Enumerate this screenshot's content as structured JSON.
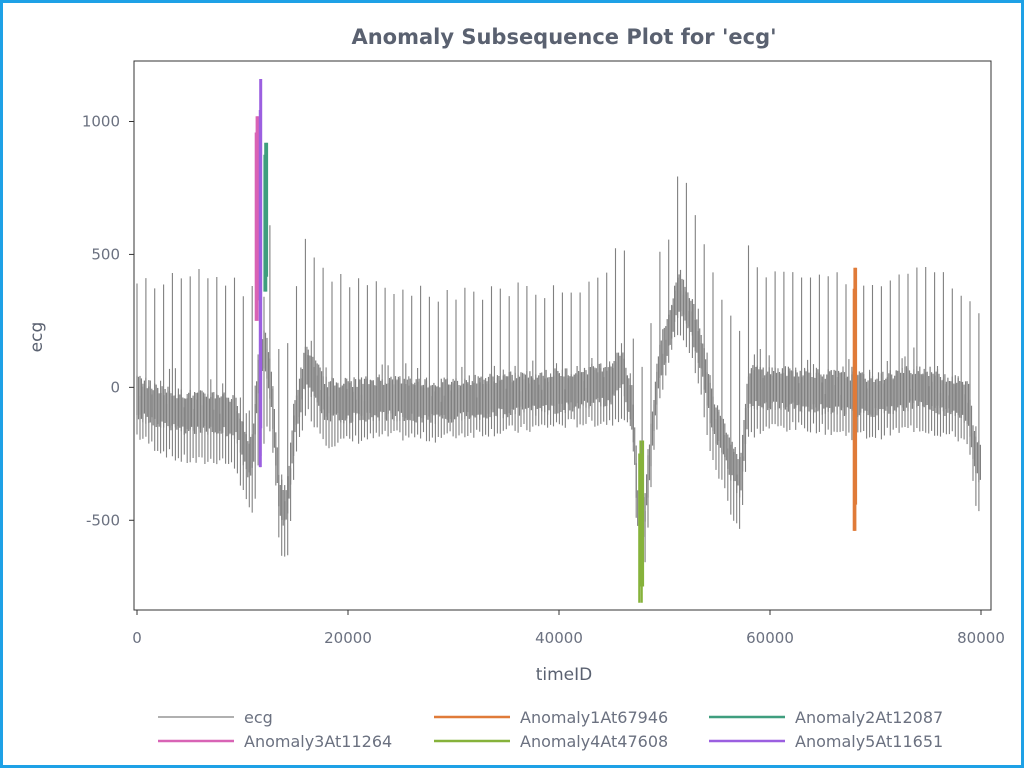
{
  "chart_data": {
    "type": "line",
    "title": "Anomaly Subsequence Plot for 'ecg'",
    "xlabel": "timeID",
    "ylabel": "ecg",
    "xlim": [
      0,
      80000
    ],
    "ylim": [
      -830,
      1220
    ],
    "x_ticks": [
      0,
      20000,
      40000,
      60000,
      80000
    ],
    "y_ticks": [
      -500,
      0,
      500,
      1000
    ],
    "grid": false,
    "legend_position": "bottom",
    "series": [
      {
        "name": "ecg",
        "color": "#808080",
        "envelope": [
          [
            0,
            -200,
            420
          ],
          [
            2000,
            -250,
            410
          ],
          [
            4000,
            -290,
            450
          ],
          [
            6000,
            -300,
            450
          ],
          [
            8000,
            -290,
            440
          ],
          [
            9500,
            -330,
            440
          ],
          [
            10500,
            -480,
            300
          ],
          [
            11000,
            -500,
            450
          ],
          [
            11500,
            -300,
            1020
          ],
          [
            12000,
            -250,
            1180
          ],
          [
            12500,
            -150,
            680
          ],
          [
            13000,
            -300,
            330
          ],
          [
            13500,
            -640,
            150
          ],
          [
            14200,
            -680,
            200
          ],
          [
            15000,
            -300,
            400
          ],
          [
            16000,
            -100,
            570
          ],
          [
            18000,
            -230,
            440
          ],
          [
            20000,
            -220,
            420
          ],
          [
            24000,
            -200,
            400
          ],
          [
            28000,
            -210,
            380
          ],
          [
            32000,
            -190,
            380
          ],
          [
            36000,
            -180,
            400
          ],
          [
            40000,
            -160,
            390
          ],
          [
            43000,
            -150,
            420
          ],
          [
            45000,
            -150,
            480
          ],
          [
            46000,
            -120,
            600
          ],
          [
            47000,
            -200,
            200
          ],
          [
            47600,
            -820,
            100
          ],
          [
            48100,
            -700,
            120
          ],
          [
            48800,
            -350,
            300
          ],
          [
            49500,
            -80,
            550
          ],
          [
            50500,
            100,
            560
          ],
          [
            51400,
            200,
            850
          ],
          [
            52500,
            100,
            730
          ],
          [
            53500,
            -60,
            600
          ],
          [
            54500,
            -300,
            470
          ],
          [
            55500,
            -380,
            370
          ],
          [
            56500,
            -510,
            300
          ],
          [
            57200,
            -550,
            250
          ],
          [
            58000,
            -200,
            550
          ],
          [
            60000,
            -170,
            450
          ],
          [
            64000,
            -170,
            420
          ],
          [
            67900,
            -200,
            450
          ],
          [
            70000,
            -200,
            430
          ],
          [
            74000,
            -170,
            480
          ],
          [
            77000,
            -200,
            430
          ],
          [
            78800,
            -220,
            380
          ],
          [
            79500,
            -480,
            300
          ],
          [
            80000,
            -500,
            300
          ]
        ]
      },
      {
        "name": "Anomaly1At67946",
        "color": "#e07b39",
        "start": 67946,
        "end": 68150,
        "min": -540,
        "max": 450
      },
      {
        "name": "Anomaly2At12087",
        "color": "#3f9e7e",
        "start": 12087,
        "end": 12320,
        "min": 360,
        "max": 920
      },
      {
        "name": "Anomaly3At11264",
        "color": "#d863b5",
        "start": 11264,
        "end": 11520,
        "min": 250,
        "max": 1020
      },
      {
        "name": "Anomaly4At47608",
        "color": "#86b23b",
        "start": 47608,
        "end": 47960,
        "min": -810,
        "max": -200
      },
      {
        "name": "Anomaly5At11651",
        "color": "#9b5fe0",
        "start": 11651,
        "end": 11760,
        "min": -300,
        "max": 1160
      }
    ]
  }
}
